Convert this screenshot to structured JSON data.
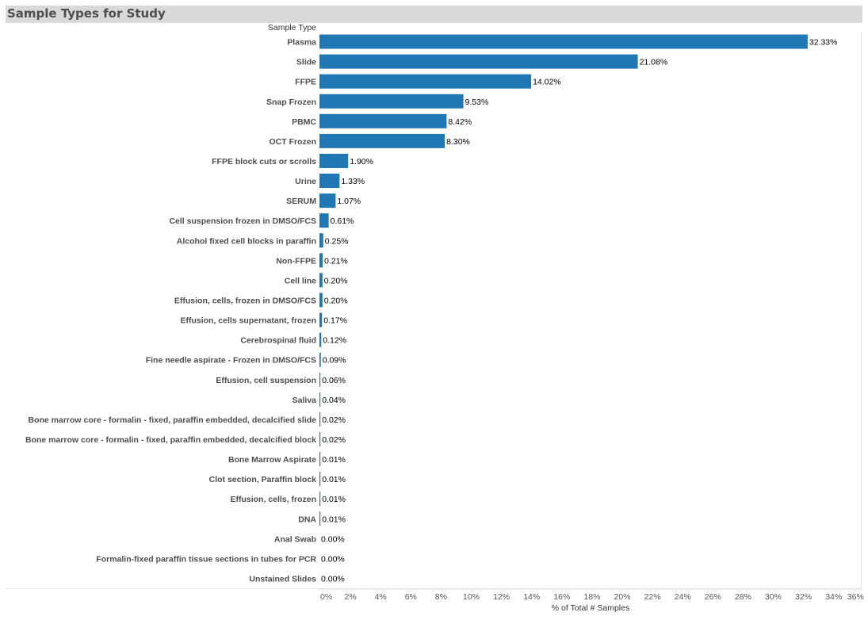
{
  "title": "Sample Types for Study",
  "bar_color": "#1f77b4",
  "chart_data": {
    "type": "bar",
    "orientation": "horizontal",
    "title": "Sample Types for Study",
    "category_header": "Sample Type",
    "xlabel": "% of Total # Samples",
    "xlim": [
      0,
      36
    ],
    "xticks": [
      "0%",
      "2%",
      "4%",
      "6%",
      "8%",
      "10%",
      "12%",
      "14%",
      "16%",
      "18%",
      "20%",
      "22%",
      "24%",
      "26%",
      "28%",
      "30%",
      "32%",
      "34%",
      "36%"
    ],
    "grid": false,
    "categories": [
      "Plasma",
      "Slide",
      "FFPE",
      "Snap Frozen",
      "PBMC",
      "OCT Frozen",
      "FFPE block cuts or scrolls",
      "Urine",
      "SERUM",
      "Cell suspension frozen in DMSO/FCS",
      "Alcohol fixed cell blocks in paraffin",
      "Non-FFPE",
      "Cell line",
      "Effusion, cells, frozen in DMSO/FCS",
      "Effusion, cells supernatant, frozen",
      "Cerebrospinal fluid",
      "Fine needle aspirate - Frozen in DMSO/FCS",
      "Effusion, cell suspension",
      "Saliva",
      "Bone marrow core - formalin - fixed, paraffin embedded, decalcified slide",
      "Bone marrow core - formalin - fixed, paraffin embedded, decalcified block",
      "Bone Marrow Aspirate",
      "Clot section, Paraffin block",
      "Effusion, cells, frozen",
      "DNA",
      "Anal Swab",
      "Formalin-fixed paraffin tissue sections in tubes for PCR",
      "Unstained Slides"
    ],
    "values": [
      32.33,
      21.08,
      14.02,
      9.53,
      8.42,
      8.3,
      1.9,
      1.33,
      1.07,
      0.61,
      0.25,
      0.21,
      0.2,
      0.2,
      0.17,
      0.12,
      0.09,
      0.06,
      0.04,
      0.02,
      0.02,
      0.01,
      0.01,
      0.01,
      0.01,
      0.0,
      0.0,
      0.0
    ],
    "data_labels": [
      "32.33%",
      "21.08%",
      "14.02%",
      "9.53%",
      "8.42%",
      "8.30%",
      "1.90%",
      "1.33%",
      "1.07%",
      "0.61%",
      "0.25%",
      "0.21%",
      "0.20%",
      "0.20%",
      "0.17%",
      "0.12%",
      "0.09%",
      "0.06%",
      "0.04%",
      "0.02%",
      "0.02%",
      "0.01%",
      "0.01%",
      "0.01%",
      "0.01%",
      "0.00%",
      "0.00%",
      "0.00%"
    ]
  }
}
